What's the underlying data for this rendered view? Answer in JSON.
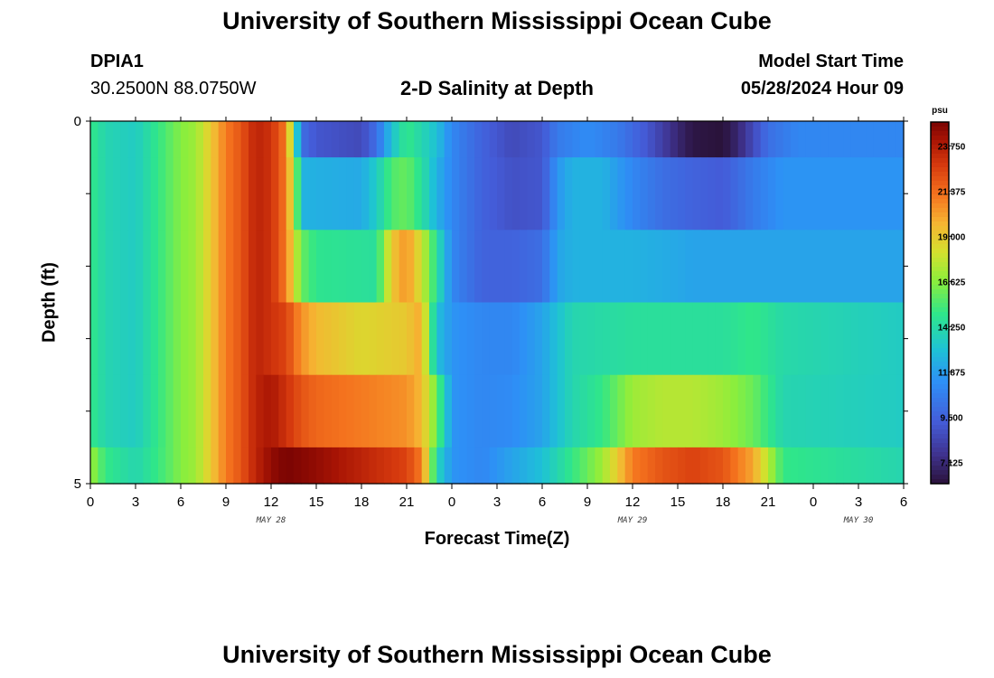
{
  "header": {
    "title": "University of Southern Mississippi Ocean Cube",
    "station_id": "DPIA1",
    "station_coords": "30.2500N  88.0750W",
    "plot_title": "2-D Salinity at Depth",
    "model_start_label": "Model Start Time",
    "model_start_value": "05/28/2024 Hour 09"
  },
  "footer": {
    "title": "University of Southern Mississippi Ocean Cube"
  },
  "chart_data": {
    "type": "heatmap",
    "title": "2-D Salinity at Depth",
    "xlabel": "Forecast Time(Z)",
    "ylabel": "Depth (ft)",
    "x_start_hour": 0,
    "x_end_hour": 54,
    "x_tick_labels": [
      "0",
      "3",
      "6",
      "9",
      "12",
      "15",
      "18",
      "21",
      "0",
      "3",
      "6",
      "9",
      "12",
      "15",
      "18",
      "21",
      "0",
      "3",
      "6"
    ],
    "x_date_labels": [
      {
        "label": "MAY 28",
        "hour": 12
      },
      {
        "label": "MAY 29",
        "hour": 36
      },
      {
        "label": "MAY 30",
        "hour": 51
      }
    ],
    "y_tick_labels": [
      "0",
      "5"
    ],
    "ylim": [
      0,
      5
    ],
    "colorbar": {
      "unit": "psu",
      "vmin": 6.0,
      "vmax": 25.0,
      "tick_labels": [
        "23.750",
        "21.375",
        "19.000",
        "16.625",
        "14.250",
        "11.875",
        "9.500",
        "7.125"
      ]
    },
    "depth_rows": [
      {
        "depth_range": [
          0,
          0.5
        ],
        "segments": [
          [
            0,
            15
          ],
          [
            1,
            14
          ],
          [
            3,
            13.5
          ],
          [
            5,
            15.5
          ],
          [
            6,
            16.5
          ],
          [
            7,
            17
          ],
          [
            8,
            19
          ],
          [
            9,
            21
          ],
          [
            10,
            22
          ],
          [
            11,
            23.5
          ],
          [
            12,
            23
          ],
          [
            13,
            21
          ],
          [
            13.5,
            16
          ],
          [
            14,
            10
          ],
          [
            15,
            9
          ],
          [
            18,
            8.5
          ],
          [
            19,
            10
          ],
          [
            20,
            13
          ],
          [
            21,
            15
          ],
          [
            22,
            14
          ],
          [
            23,
            13
          ],
          [
            24,
            11
          ],
          [
            26,
            9.5
          ],
          [
            28,
            8.5
          ],
          [
            30,
            9
          ],
          [
            31,
            10.5
          ],
          [
            33,
            11.2
          ],
          [
            35,
            10.5
          ],
          [
            37,
            9
          ],
          [
            38,
            8
          ],
          [
            39,
            7
          ],
          [
            40,
            6.2
          ],
          [
            42,
            6
          ],
          [
            43,
            7
          ],
          [
            44,
            8.5
          ],
          [
            45,
            10
          ],
          [
            47,
            11
          ],
          [
            54,
            11
          ]
        ]
      },
      {
        "depth_range": [
          0.5,
          1.5
        ],
        "segments": [
          [
            0,
            15
          ],
          [
            1,
            14
          ],
          [
            3,
            13.5
          ],
          [
            5,
            15.5
          ],
          [
            6,
            16.5
          ],
          [
            7,
            17
          ],
          [
            8,
            19
          ],
          [
            9,
            21
          ],
          [
            10,
            22
          ],
          [
            11,
            23.5
          ],
          [
            12,
            23
          ],
          [
            13,
            21
          ],
          [
            13.7,
            16
          ],
          [
            14,
            12.5
          ],
          [
            18,
            12.2
          ],
          [
            19,
            13.5
          ],
          [
            20,
            15.5
          ],
          [
            21,
            16
          ],
          [
            22,
            14.5
          ],
          [
            23,
            12.5
          ],
          [
            24,
            11
          ],
          [
            26,
            9.5
          ],
          [
            28,
            8.8
          ],
          [
            30,
            9
          ],
          [
            31,
            11.5
          ],
          [
            32,
            12.5
          ],
          [
            34,
            12.5
          ],
          [
            36,
            11
          ],
          [
            38,
            10
          ],
          [
            40,
            9.5
          ],
          [
            42,
            9.2
          ],
          [
            44,
            10.5
          ],
          [
            46,
            11.5
          ],
          [
            54,
            11.5
          ]
        ]
      },
      {
        "depth_range": [
          1.5,
          2.5
        ],
        "segments": [
          [
            0,
            15
          ],
          [
            1,
            14
          ],
          [
            3,
            13.5
          ],
          [
            5,
            15.5
          ],
          [
            6,
            16.5
          ],
          [
            7,
            17
          ],
          [
            8,
            19
          ],
          [
            9,
            21
          ],
          [
            10,
            22
          ],
          [
            11,
            23.5
          ],
          [
            12,
            23
          ],
          [
            13,
            21
          ],
          [
            14,
            16
          ],
          [
            15,
            14.8
          ],
          [
            19,
            14.5
          ],
          [
            20,
            19
          ],
          [
            21,
            20.5
          ],
          [
            22,
            18
          ],
          [
            23,
            14.5
          ],
          [
            24,
            11
          ],
          [
            26,
            9.5
          ],
          [
            28,
            9.5
          ],
          [
            30,
            10
          ],
          [
            31,
            12
          ],
          [
            32,
            12.5
          ],
          [
            36,
            12.5
          ],
          [
            38,
            12.3
          ],
          [
            40,
            12
          ],
          [
            42,
            12
          ],
          [
            44,
            12
          ],
          [
            46,
            12
          ],
          [
            54,
            12
          ]
        ]
      },
      {
        "depth_range": [
          2.5,
          3.5
        ],
        "segments": [
          [
            0,
            15
          ],
          [
            1,
            14
          ],
          [
            3,
            13.5
          ],
          [
            5,
            15.5
          ],
          [
            6,
            16.5
          ],
          [
            7,
            17
          ],
          [
            8,
            19
          ],
          [
            9,
            21
          ],
          [
            10,
            22
          ],
          [
            11,
            23.5
          ],
          [
            12,
            23
          ],
          [
            13,
            22.5
          ],
          [
            14,
            20.5
          ],
          [
            15,
            19.5
          ],
          [
            18,
            18.5
          ],
          [
            21,
            19
          ],
          [
            22,
            20
          ],
          [
            22.5,
            16
          ],
          [
            23,
            13
          ],
          [
            24,
            11.5
          ],
          [
            26,
            11
          ],
          [
            28,
            11
          ],
          [
            30,
            12
          ],
          [
            31,
            13
          ],
          [
            32,
            14
          ],
          [
            36,
            14.5
          ],
          [
            38,
            14.5
          ],
          [
            40,
            14.5
          ],
          [
            42,
            14.5
          ],
          [
            44,
            15
          ],
          [
            46,
            14.2
          ],
          [
            54,
            13.5
          ]
        ]
      },
      {
        "depth_range": [
          3.5,
          4.5
        ],
        "segments": [
          [
            0,
            15
          ],
          [
            1,
            14
          ],
          [
            3,
            13.5
          ],
          [
            5,
            15.5
          ],
          [
            6,
            16.5
          ],
          [
            7,
            17
          ],
          [
            8,
            19
          ],
          [
            9,
            21
          ],
          [
            10,
            22
          ],
          [
            11,
            23.5
          ],
          [
            12,
            24
          ],
          [
            13,
            23
          ],
          [
            14,
            22
          ],
          [
            15,
            21.5
          ],
          [
            18,
            21
          ],
          [
            21,
            20.5
          ],
          [
            22,
            19.5
          ],
          [
            23,
            16
          ],
          [
            24,
            11.5
          ],
          [
            26,
            11
          ],
          [
            28,
            11.2
          ],
          [
            30,
            12
          ],
          [
            31,
            13
          ],
          [
            32,
            14
          ],
          [
            34,
            15
          ],
          [
            35,
            16
          ],
          [
            36,
            17
          ],
          [
            38,
            17.5
          ],
          [
            40,
            17.5
          ],
          [
            42,
            17
          ],
          [
            44,
            16
          ],
          [
            46,
            14
          ],
          [
            54,
            13.5
          ]
        ]
      },
      {
        "depth_range": [
          4.5,
          5
        ],
        "segments": [
          [
            0,
            17
          ],
          [
            1,
            15
          ],
          [
            3,
            14
          ],
          [
            5,
            15.5
          ],
          [
            6,
            16.5
          ],
          [
            7,
            17
          ],
          [
            8,
            19
          ],
          [
            9,
            21
          ],
          [
            10,
            22
          ],
          [
            11,
            23.5
          ],
          [
            12,
            24.5
          ],
          [
            13,
            25
          ],
          [
            15,
            24.5
          ],
          [
            18,
            23.5
          ],
          [
            21,
            22.5
          ],
          [
            22,
            21
          ],
          [
            23,
            14
          ],
          [
            24,
            11.5
          ],
          [
            26,
            11
          ],
          [
            28,
            12
          ],
          [
            30,
            13
          ],
          [
            31,
            14
          ],
          [
            32,
            15
          ],
          [
            34,
            17
          ],
          [
            35,
            19
          ],
          [
            36,
            21
          ],
          [
            38,
            22
          ],
          [
            40,
            22.5
          ],
          [
            42,
            22
          ],
          [
            44,
            20
          ],
          [
            46,
            15
          ],
          [
            54,
            14
          ]
        ]
      }
    ]
  },
  "colors": {
    "background": "#ffffff",
    "frame": "#000000"
  }
}
